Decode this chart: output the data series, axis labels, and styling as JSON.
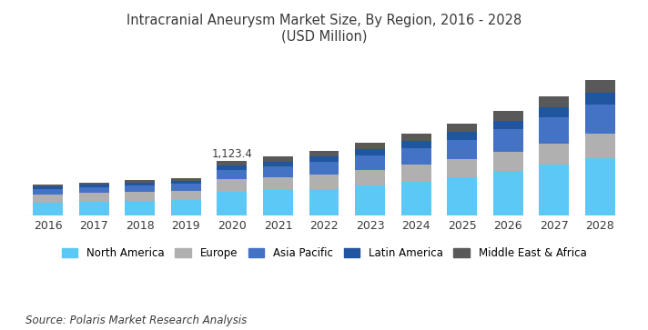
{
  "title_line1": "Intracranial Aneurysm Market Size, By Region, 2016 - 2028",
  "title_line2": "(USD Million)",
  "years": [
    2016,
    2017,
    2018,
    2019,
    2020,
    2021,
    2022,
    2023,
    2024,
    2025,
    2026,
    2027,
    2028
  ],
  "regions": [
    "North America",
    "Europe",
    "Asia Pacific",
    "Latin America",
    "Middle East & Africa"
  ],
  "colors": [
    "#5BC8F5",
    "#B0B0B0",
    "#4472C4",
    "#2055A0",
    "#595959"
  ],
  "data": {
    "North America": [
      270,
      285,
      300,
      315,
      490,
      520,
      555,
      620,
      700,
      790,
      910,
      1040,
      1180
    ],
    "Europe": [
      170,
      180,
      190,
      200,
      255,
      270,
      290,
      315,
      345,
      370,
      400,
      445,
      495
    ],
    "Asia Pacific": [
      110,
      118,
      128,
      140,
      190,
      220,
      255,
      295,
      340,
      390,
      455,
      525,
      600
    ],
    "Latin America": [
      50,
      55,
      60,
      65,
      90,
      100,
      112,
      128,
      145,
      163,
      185,
      210,
      238
    ],
    "Middle East & Africa": [
      40,
      44,
      48,
      54,
      98,
      108,
      120,
      135,
      155,
      175,
      200,
      228,
      262
    ]
  },
  "annotation_year": 2020,
  "annotation_text": "1,123.4",
  "source": "Source: Polaris Market Research Analysis",
  "background_color": "#FFFFFF",
  "plot_bg_color": "#FFFFFF",
  "title_color": "#3A3A3A",
  "label_color": "#3A3A3A",
  "source_color": "#3A3A3A",
  "title_fontsize": 10.5,
  "tick_fontsize": 9,
  "legend_fontsize": 8.5,
  "source_fontsize": 8.5,
  "bar_width": 0.65
}
